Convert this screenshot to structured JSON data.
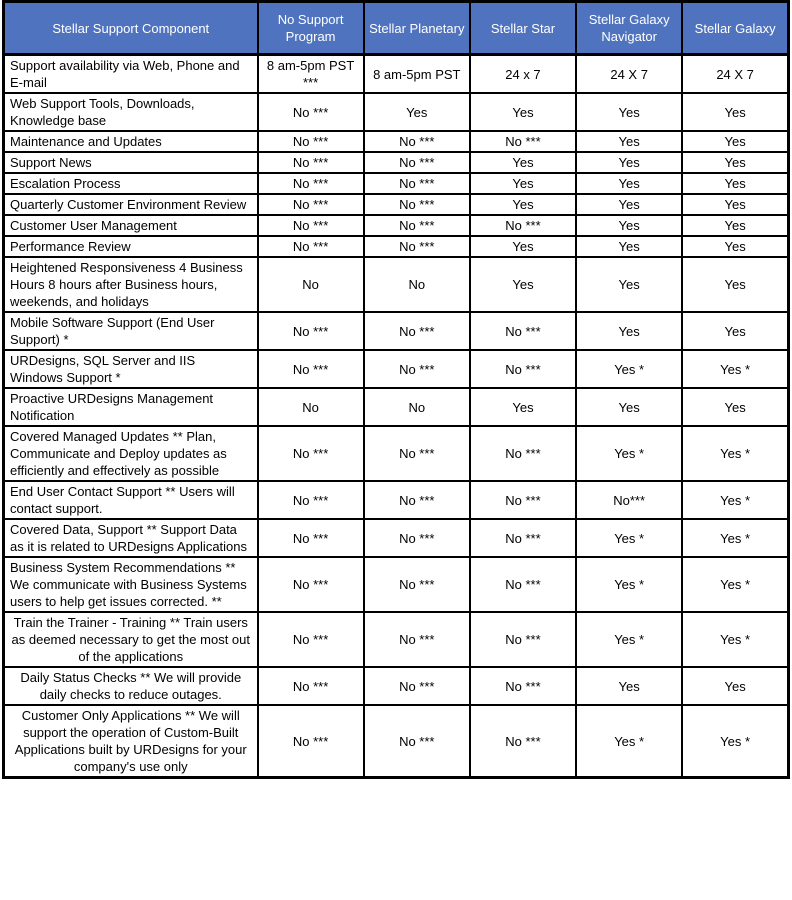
{
  "colors": {
    "header_bg": "#4f73be",
    "header_text": "#ffffff",
    "border": "#000000",
    "body_text": "#000000",
    "background": "#ffffff"
  },
  "table": {
    "columns": [
      {
        "label": "Stellar Support Component"
      },
      {
        "label": "No Support Program"
      },
      {
        "label": "Stellar Planetary"
      },
      {
        "label": "Stellar Star"
      },
      {
        "label": "Stellar Galaxy Navigator"
      },
      {
        "label": "Stellar Galaxy"
      }
    ],
    "rows": [
      {
        "component": "Support availability via Web, Phone and E-mail",
        "values": [
          "8 am-5pm PST ***",
          "8 am-5pm PST",
          "24 x 7",
          "24 X 7",
          "24 X 7"
        ],
        "align": "left"
      },
      {
        "component": "Web Support Tools, Downloads, Knowledge base",
        "values": [
          "No ***",
          "Yes",
          "Yes",
          "Yes",
          "Yes"
        ],
        "align": "left"
      },
      {
        "component": "Maintenance and Updates",
        "values": [
          "No ***",
          "No ***",
          "No ***",
          "Yes",
          "Yes"
        ],
        "align": "left"
      },
      {
        "component": "Support News",
        "values": [
          "No ***",
          "No ***",
          "Yes",
          "Yes",
          "Yes"
        ],
        "align": "left"
      },
      {
        "component": "Escalation Process",
        "values": [
          "No ***",
          "No ***",
          "Yes",
          "Yes",
          "Yes"
        ],
        "align": "left"
      },
      {
        "component": "Quarterly Customer Environment Review",
        "values": [
          "No ***",
          "No ***",
          "Yes",
          "Yes",
          "Yes"
        ],
        "align": "left"
      },
      {
        "component": "Customer User Management",
        "values": [
          "No ***",
          "No ***",
          "No ***",
          "Yes",
          "Yes"
        ],
        "align": "left"
      },
      {
        "component": "Performance Review",
        "values": [
          "No ***",
          "No ***",
          "Yes",
          "Yes",
          "Yes"
        ],
        "align": "left"
      },
      {
        "component": "Heightened Responsiveness 4 Business Hours 8 hours after Business hours, weekends, and holidays",
        "values": [
          "No",
          "No",
          "Yes",
          "Yes",
          "Yes"
        ],
        "align": "left"
      },
      {
        "component": "Mobile Software Support (End User Support) *",
        "values": [
          "No ***",
          "No ***",
          "No ***",
          "Yes",
          "Yes"
        ],
        "align": "left"
      },
      {
        "component": "URDesigns, SQL Server and IIS Windows Support *",
        "values": [
          "No ***",
          "No ***",
          "No ***",
          "Yes *",
          "Yes *"
        ],
        "align": "left"
      },
      {
        "component": "Proactive URDesigns Management Notification",
        "values": [
          "No",
          "No",
          "Yes",
          "Yes",
          "Yes"
        ],
        "align": "left"
      },
      {
        "component": "Covered Managed Updates ** Plan, Communicate and Deploy updates as efficiently and effectively as possible",
        "values": [
          "No ***",
          "No ***",
          "No ***",
          "Yes *",
          "Yes *"
        ],
        "align": "left"
      },
      {
        "component": "End User Contact Support ** Users will contact support.",
        "values": [
          "No ***",
          "No ***",
          "No ***",
          "No***",
          "Yes *"
        ],
        "align": "left"
      },
      {
        "component": "Covered Data, Support ** Support Data as it is related to URDesigns Applications",
        "values": [
          "No ***",
          "No ***",
          "No ***",
          "Yes *",
          "Yes *"
        ],
        "align": "left"
      },
      {
        "component": "Business System Recommendations ** We communicate with Business Systems users to help get issues corrected. **",
        "values": [
          "No ***",
          "No ***",
          "No ***",
          "Yes *",
          "Yes *"
        ],
        "align": "left"
      },
      {
        "component": "Train the Trainer - Training ** Train users as deemed necessary to get the most out of the applications",
        "values": [
          "No ***",
          "No ***",
          "No ***",
          "Yes *",
          "Yes *"
        ],
        "align": "center"
      },
      {
        "component": "Daily Status Checks ** We will provide daily checks to reduce outages.",
        "values": [
          "No ***",
          "No ***",
          "No ***",
          "Yes",
          "Yes"
        ],
        "align": "center"
      },
      {
        "component": "Customer Only Applications ** We will support the operation of Custom-Built Applications built by URDesigns for your company's use only",
        "values": [
          "No ***",
          "No ***",
          "No ***",
          "Yes *",
          "Yes *"
        ],
        "align": "center"
      }
    ]
  }
}
